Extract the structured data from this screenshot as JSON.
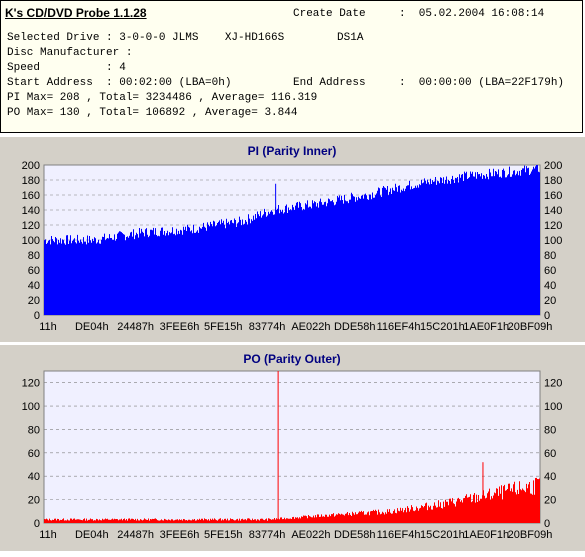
{
  "app_title": "K's CD/DVD Probe 1.1.28",
  "info": {
    "create_date_label": "Create Date",
    "create_date_value": ":  05.02.2004 16:08:14",
    "selected_drive": "Selected Drive : 3-0-0-0 JLMS    XJ-HD166S        DS1A",
    "disc_manufacturer": "Disc Manufacturer :",
    "speed": "Speed          : 4",
    "start_address": "Start Address  : 00:02:00 (LBA=0h)",
    "end_address_label": "End Address",
    "end_address_value": ":  00:00:00 (LBA=22F179h)",
    "pi_stats": "PI Max= 208 , Total= 3234486 , Average= 116.319",
    "po_stats": "PO Max= 130 , Total= 106892 , Average= 3.844"
  },
  "chart_data": [
    {
      "type": "area",
      "title": "PI (Parity Inner)",
      "color": "#0000ff",
      "ylim": [
        0,
        200
      ],
      "yticks": [
        0,
        20,
        40,
        60,
        80,
        100,
        120,
        140,
        160,
        180,
        200
      ],
      "xticks": [
        "11h",
        "DE04h",
        "24487h",
        "3FEE6h",
        "5FE15h",
        "83774h",
        "AE022h",
        "DDE58h",
        "116EF4h",
        "15C201h",
        "1AE0F1h",
        "20BF09h"
      ],
      "grid": true,
      "max": 208,
      "series_profile": [
        {
          "x": 0.0,
          "y": 100
        },
        {
          "x": 0.1,
          "y": 100
        },
        {
          "x": 0.2,
          "y": 110
        },
        {
          "x": 0.3,
          "y": 115
        },
        {
          "x": 0.4,
          "y": 125
        },
        {
          "x": 0.46,
          "y": 140
        },
        {
          "x": 0.55,
          "y": 148
        },
        {
          "x": 0.65,
          "y": 160
        },
        {
          "x": 0.75,
          "y": 175
        },
        {
          "x": 0.85,
          "y": 185
        },
        {
          "x": 1.0,
          "y": 195
        }
      ],
      "spikes": [
        {
          "x": 0.467,
          "y": 175
        }
      ]
    },
    {
      "type": "area",
      "title": "PO (Parity Outer)",
      "color": "#ff0000",
      "ylim": [
        0,
        130
      ],
      "yticks": [
        0,
        20,
        40,
        60,
        80,
        100,
        120
      ],
      "xticks": [
        "11h",
        "DE04h",
        "24487h",
        "3FEE6h",
        "5FE15h",
        "83774h",
        "AE022h",
        "DDE58h",
        "116EF4h",
        "15C201h",
        "1AE0F1h",
        "20BF09h"
      ],
      "grid": true,
      "max": 130,
      "series_profile": [
        {
          "x": 0.0,
          "y": 3
        },
        {
          "x": 0.45,
          "y": 3
        },
        {
          "x": 0.55,
          "y": 6
        },
        {
          "x": 0.7,
          "y": 10
        },
        {
          "x": 0.8,
          "y": 16
        },
        {
          "x": 0.9,
          "y": 24
        },
        {
          "x": 1.0,
          "y": 33
        }
      ],
      "spikes": [
        {
          "x": 0.472,
          "y": 130
        },
        {
          "x": 0.885,
          "y": 52
        }
      ]
    }
  ]
}
